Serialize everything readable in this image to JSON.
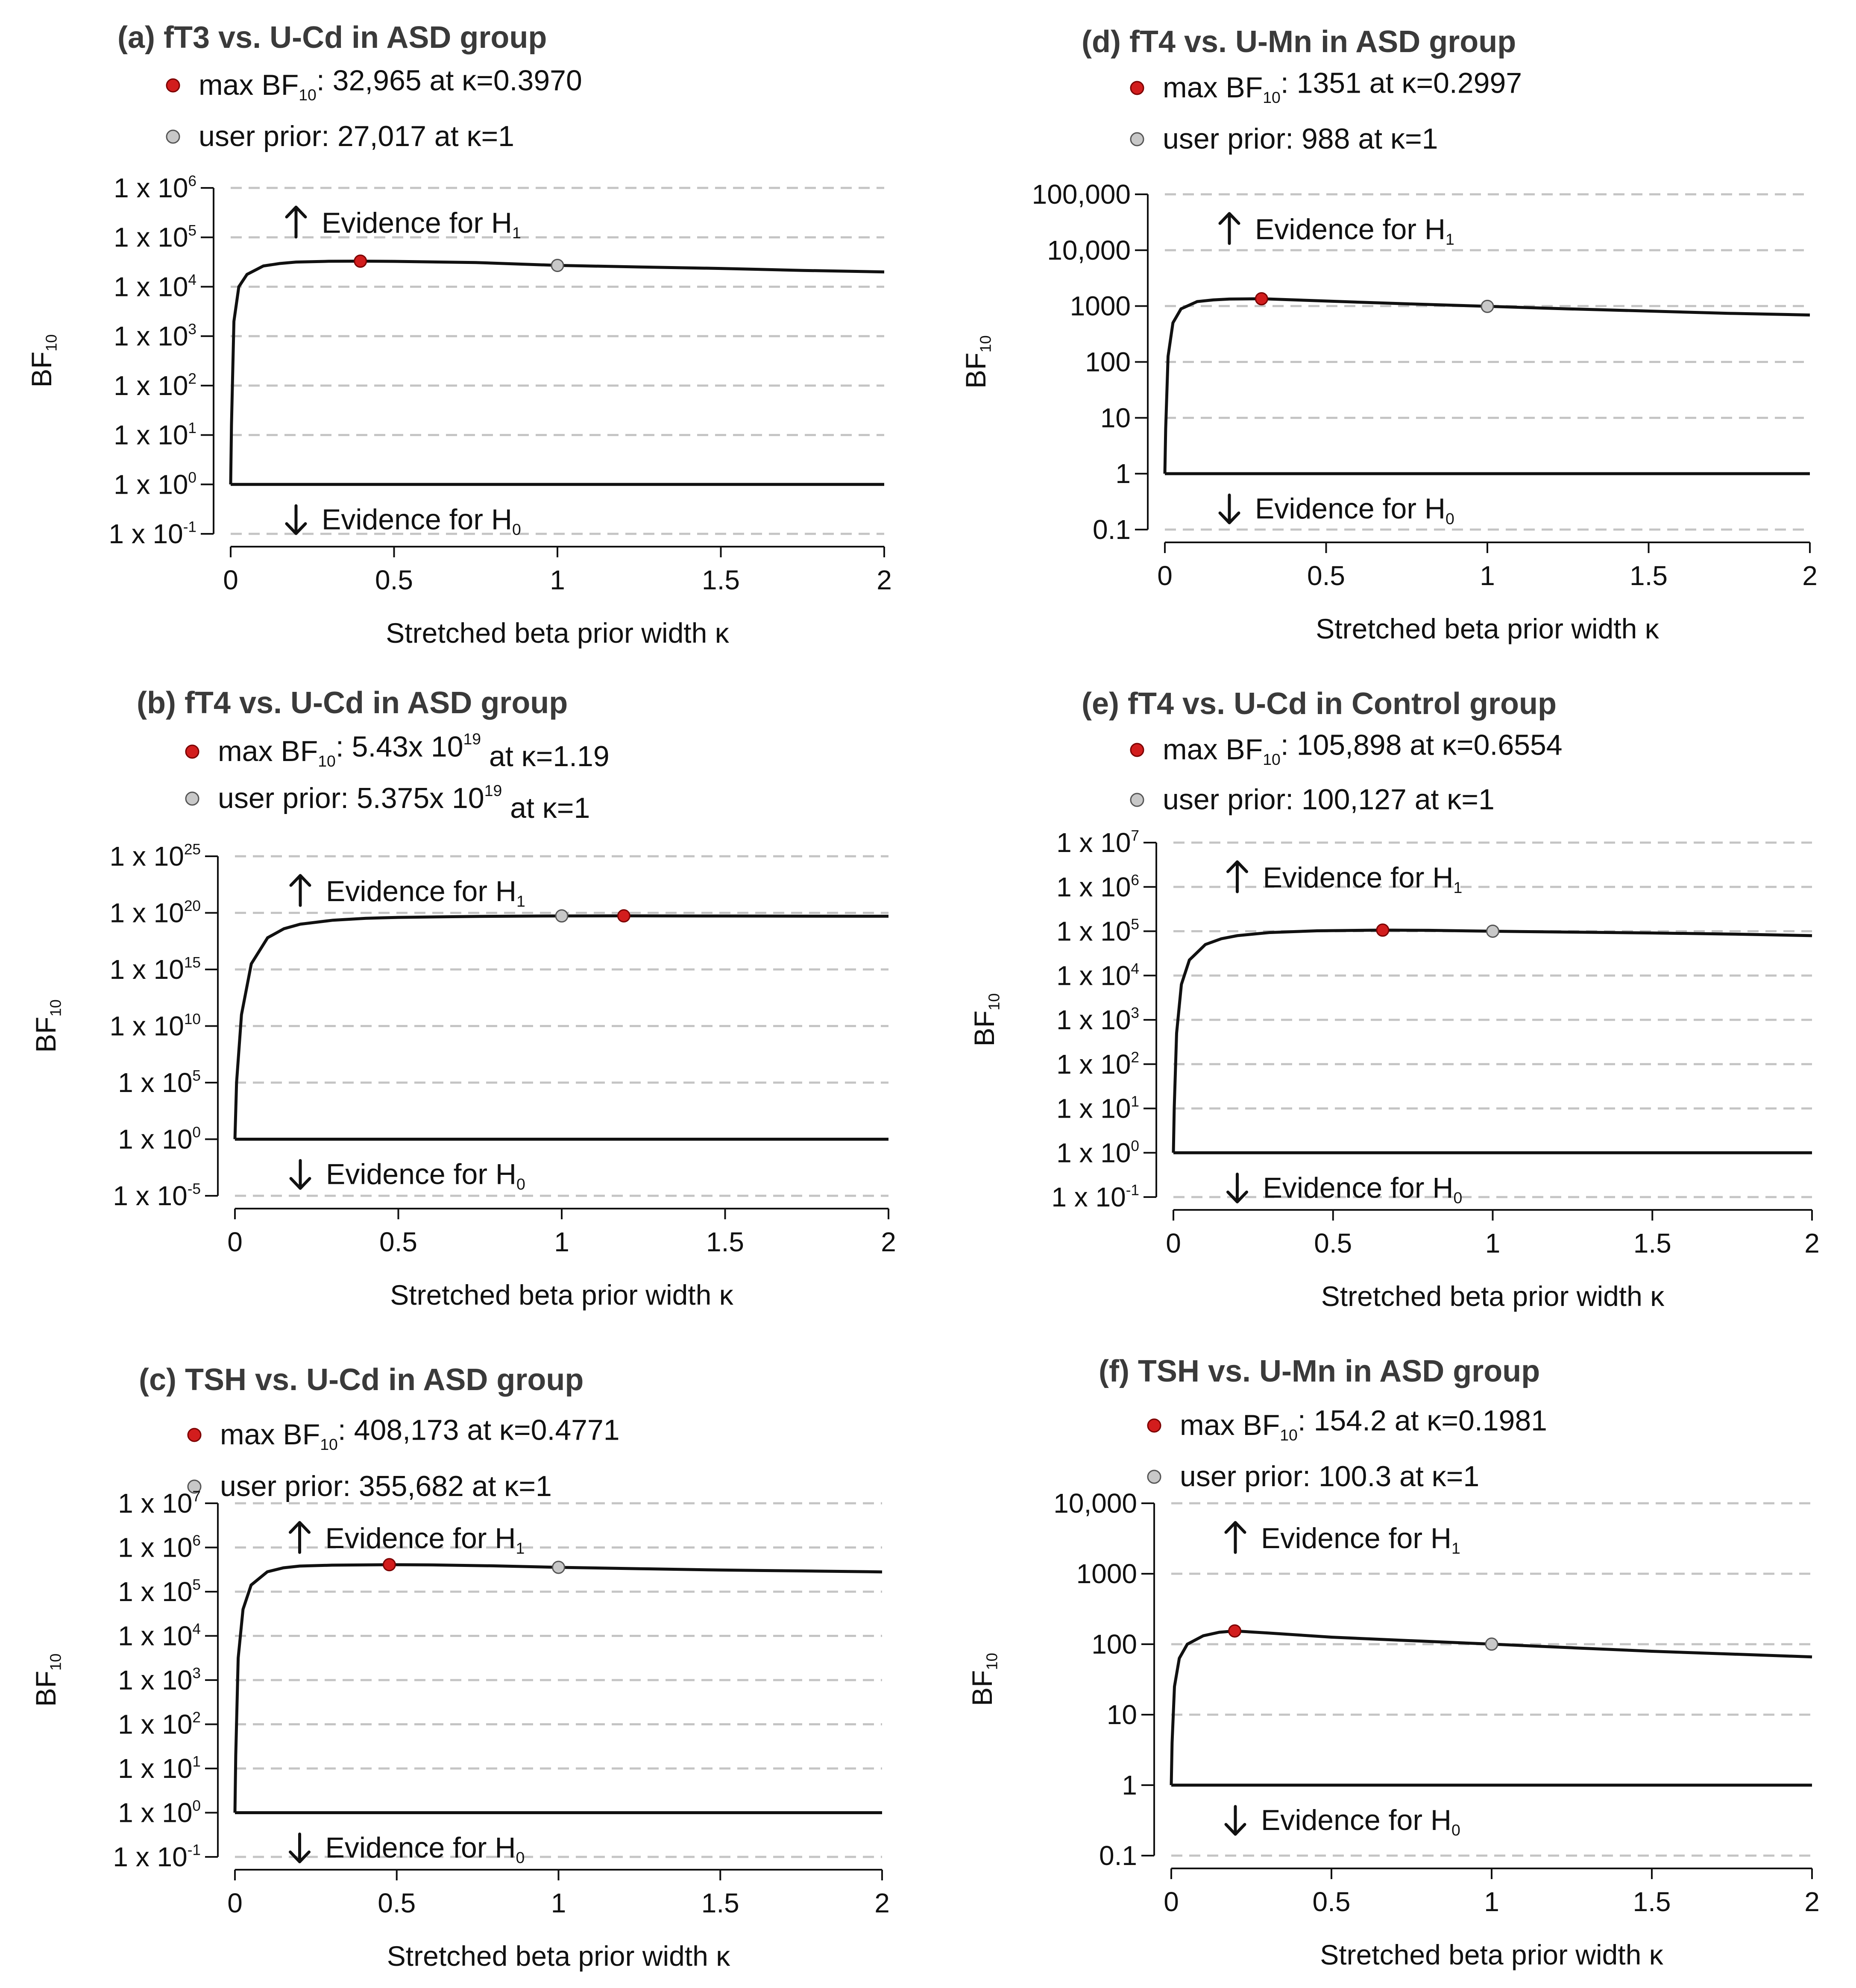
{
  "colors": {
    "max_point": "#d21d1d",
    "user_point": "#c8c8c8",
    "curve": "#111111",
    "grid": "#c4c4c4",
    "title": "#3a3a3a"
  },
  "chart_data": [
    {
      "id": "a",
      "type": "line",
      "title": "(a) fT3 vs. U-Cd in ASD group",
      "legend": {
        "max_label": "max BF",
        "max_sub": "10",
        "max_value": ": 32,965 at κ=0.3970",
        "user_label": "user prior: 27,017 at κ=1"
      },
      "xlabel": "Stretched beta prior width κ",
      "ylabel": "BF",
      "ylabel_sub": "10",
      "xticks": [
        0,
        0.5,
        1,
        1.5,
        2
      ],
      "xtick_labels": [
        "0",
        "0.5",
        "1",
        "1.5",
        "2"
      ],
      "xlim": [
        0,
        2
      ],
      "y_scale": "log10",
      "ylim_log10": [
        -1,
        6
      ],
      "ytick_exponents": [
        6,
        5,
        4,
        3,
        2,
        1,
        0,
        -1
      ],
      "ytick_labels": [
        [
          "1 x 10",
          "6"
        ],
        [
          "1 x 10",
          "5"
        ],
        [
          "1 x 10",
          "4"
        ],
        [
          "1 x 10",
          "3"
        ],
        [
          "1 x 10",
          "2"
        ],
        [
          "1 x 10",
          "1"
        ],
        [
          "1 x 10",
          "0"
        ],
        [
          "1 x 10",
          "-1"
        ]
      ],
      "evidence_h1": "Evidence for H",
      "evidence_h1_sub": "1",
      "evidence_h0": "Evidence for H",
      "evidence_h0_sub": "0",
      "max_point": {
        "kappa": 0.397,
        "bf": 32965
      },
      "user_point": {
        "kappa": 1,
        "bf": 27017
      },
      "bf_at_kappa2": 20000,
      "series": [
        {
          "name": "BF10",
          "kappa": [
            0,
            0.0025,
            0.01,
            0.025,
            0.05,
            0.1,
            0.15,
            0.2,
            0.3,
            0.397,
            0.5,
            0.75,
            1,
            1.25,
            1.5,
            1.75,
            2
          ],
          "log10_bf": [
            0,
            1.2,
            3.3,
            4.0,
            4.25,
            4.42,
            4.47,
            4.5,
            4.515,
            4.518,
            4.514,
            4.49,
            4.432,
            4.4,
            4.37,
            4.33,
            4.3
          ]
        }
      ]
    },
    {
      "id": "d",
      "type": "line",
      "title": "(d) fT4 vs. U-Mn in ASD group",
      "legend": {
        "max_label": "max BF",
        "max_sub": "10",
        "max_value": ": 1351 at κ=0.2997",
        "user_label": "user prior: 988 at κ=1"
      },
      "xlabel": "Stretched beta prior width κ",
      "ylabel": "BF",
      "ylabel_sub": "10",
      "xticks": [
        0,
        0.5,
        1,
        1.5,
        2
      ],
      "xtick_labels": [
        "0",
        "0.5",
        "1",
        "1.5",
        "2"
      ],
      "xlim": [
        0,
        2
      ],
      "y_scale": "log10",
      "ylim_log10": [
        -1,
        5
      ],
      "ytick_exponents": [
        5,
        4,
        3,
        2,
        1,
        0,
        -1
      ],
      "ytick_labels": [
        [
          "100,000",
          ""
        ],
        [
          "10,000",
          ""
        ],
        [
          "1000",
          ""
        ],
        [
          "100",
          ""
        ],
        [
          "10",
          ""
        ],
        [
          "1",
          ""
        ],
        [
          "0.1",
          ""
        ]
      ],
      "evidence_h1": "Evidence for H",
      "evidence_h1_sub": "1",
      "evidence_h0": "Evidence for H",
      "evidence_h0_sub": "0",
      "max_point": {
        "kappa": 0.2997,
        "bf": 1351
      },
      "user_point": {
        "kappa": 1,
        "bf": 988
      },
      "bf_at_kappa2": 690,
      "series": [
        {
          "name": "BF10",
          "kappa": [
            0,
            0.0025,
            0.01,
            0.025,
            0.05,
            0.1,
            0.15,
            0.2,
            0.2997,
            0.5,
            0.75,
            1,
            1.25,
            1.5,
            1.75,
            2
          ],
          "log10_bf": [
            0,
            0.8,
            2.1,
            2.7,
            2.95,
            3.08,
            3.11,
            3.125,
            3.131,
            3.09,
            3.04,
            2.995,
            2.95,
            2.91,
            2.87,
            2.84
          ]
        }
      ]
    },
    {
      "id": "b",
      "type": "line",
      "title": "(b) fT4 vs. U-Cd in ASD group",
      "legend": {
        "max_label": "max BF",
        "max_sub": "10",
        "max_value": ": 5.43x 10",
        "max_sup": "19",
        "max_tail": " at κ=1.19",
        "user_label": "user prior: 5.375x 10",
        "user_sup": "19",
        "user_tail": " at κ=1"
      },
      "xlabel": "Stretched beta prior width κ",
      "ylabel": "BF",
      "ylabel_sub": "10",
      "xticks": [
        0,
        0.5,
        1,
        1.5,
        2
      ],
      "xtick_labels": [
        "0",
        "0.5",
        "1",
        "1.5",
        "2"
      ],
      "xlim": [
        0,
        2
      ],
      "y_scale": "log10",
      "ylim_log10": [
        -5,
        25
      ],
      "ytick_exponents": [
        25,
        20,
        15,
        10,
        5,
        0,
        -5
      ],
      "ytick_labels": [
        [
          "1 x 10",
          "25"
        ],
        [
          "1 x 10",
          "20"
        ],
        [
          "1 x 10",
          "15"
        ],
        [
          "1 x 10",
          "10"
        ],
        [
          "1 x 10",
          "5"
        ],
        [
          "1 x 10",
          "0"
        ],
        [
          "1 x 10",
          "-5"
        ]
      ],
      "evidence_h1": "Evidence for H",
      "evidence_h1_sub": "1",
      "evidence_h0": "Evidence for H",
      "evidence_h0_sub": "0",
      "max_point": {
        "kappa": 1.19,
        "bf": 5.43e+19
      },
      "user_point": {
        "kappa": 1,
        "bf": 5.375e+19
      },
      "bf_at_kappa2": 5e+19,
      "series": [
        {
          "name": "BF10",
          "kappa": [
            0,
            0.005,
            0.02,
            0.05,
            0.1,
            0.15,
            0.2,
            0.3,
            0.4,
            0.5,
            0.75,
            1,
            1.19,
            1.5,
            1.75,
            2
          ],
          "log10_bf": [
            0,
            5,
            11,
            15.5,
            17.8,
            18.6,
            19.0,
            19.35,
            19.52,
            19.6,
            19.69,
            19.73,
            19.735,
            19.72,
            19.71,
            19.7
          ]
        }
      ]
    },
    {
      "id": "e",
      "type": "line",
      "title": "(e) fT4 vs. U-Cd in Control group",
      "legend": {
        "max_label": "max BF",
        "max_sub": "10",
        "max_value": ": 105,898 at κ=0.6554",
        "user_label": "user prior: 100,127 at κ=1"
      },
      "xlabel": "Stretched beta prior width κ",
      "ylabel": "BF",
      "ylabel_sub": "10",
      "xticks": [
        0,
        0.5,
        1,
        1.5,
        2
      ],
      "xtick_labels": [
        "0",
        "0.5",
        "1",
        "1.5",
        "2"
      ],
      "xlim": [
        0,
        2
      ],
      "y_scale": "log10",
      "ylim_log10": [
        -1,
        7
      ],
      "ytick_exponents": [
        7,
        6,
        5,
        4,
        3,
        2,
        1,
        0,
        -1
      ],
      "ytick_labels": [
        [
          "1 x 10",
          "7"
        ],
        [
          "1 x 10",
          "6"
        ],
        [
          "1 x 10",
          "5"
        ],
        [
          "1 x 10",
          "4"
        ],
        [
          "1 x 10",
          "3"
        ],
        [
          "1 x 10",
          "2"
        ],
        [
          "1 x 10",
          "1"
        ],
        [
          "1 x 10",
          "0"
        ],
        [
          "1 x 10",
          "-1"
        ]
      ],
      "evidence_h1": "Evidence for H",
      "evidence_h1_sub": "1",
      "evidence_h0": "Evidence for H",
      "evidence_h0_sub": "0",
      "max_point": {
        "kappa": 0.6554,
        "bf": 105898
      },
      "user_point": {
        "kappa": 1,
        "bf": 100127
      },
      "bf_at_kappa2": 80000,
      "series": [
        {
          "name": "BF10",
          "kappa": [
            0,
            0.0025,
            0.01,
            0.025,
            0.05,
            0.1,
            0.15,
            0.2,
            0.3,
            0.45,
            0.6554,
            0.8,
            1,
            1.25,
            1.5,
            1.75,
            2
          ],
          "log10_bf": [
            0,
            1.0,
            2.7,
            3.8,
            4.35,
            4.7,
            4.83,
            4.9,
            4.97,
            5.01,
            5.025,
            5.02,
            5.0,
            4.98,
            4.96,
            4.935,
            4.9
          ]
        }
      ]
    },
    {
      "id": "c",
      "type": "line",
      "title": "(c) TSH vs. U-Cd in ASD group",
      "legend": {
        "max_label": "max BF",
        "max_sub": "10",
        "max_value": ": 408,173 at κ=0.4771",
        "user_label": "user prior: 355,682 at κ=1"
      },
      "xlabel": "Stretched beta prior width κ",
      "ylabel": "BF",
      "ylabel_sub": "10",
      "xticks": [
        0,
        0.5,
        1,
        1.5,
        2
      ],
      "xtick_labels": [
        "0",
        "0.5",
        "1",
        "1.5",
        "2"
      ],
      "xlim": [
        0,
        2
      ],
      "y_scale": "log10",
      "ylim_log10": [
        -1,
        7
      ],
      "ytick_exponents": [
        7,
        6,
        5,
        4,
        3,
        2,
        1,
        0,
        -1
      ],
      "ytick_labels": [
        [
          "1 x 10",
          "7"
        ],
        [
          "1 x 10",
          "6"
        ],
        [
          "1 x 10",
          "5"
        ],
        [
          "1 x 10",
          "4"
        ],
        [
          "1 x 10",
          "3"
        ],
        [
          "1 x 10",
          "2"
        ],
        [
          "1 x 10",
          "1"
        ],
        [
          "1 x 10",
          "0"
        ],
        [
          "1 x 10",
          "-1"
        ]
      ],
      "evidence_h1": "Evidence for H",
      "evidence_h1_sub": "1",
      "evidence_h0": "Evidence for H",
      "evidence_h0_sub": "0",
      "max_point": {
        "kappa": 0.4771,
        "bf": 408173
      },
      "user_point": {
        "kappa": 1,
        "bf": 355682
      },
      "bf_at_kappa2": 280000,
      "series": [
        {
          "name": "BF10",
          "kappa": [
            0,
            0.0025,
            0.01,
            0.025,
            0.05,
            0.1,
            0.15,
            0.2,
            0.3,
            0.4771,
            0.6,
            0.8,
            1,
            1.25,
            1.5,
            1.75,
            2
          ],
          "log10_bf": [
            0,
            1.3,
            3.5,
            4.6,
            5.15,
            5.45,
            5.54,
            5.58,
            5.6,
            5.611,
            5.607,
            5.585,
            5.551,
            5.52,
            5.49,
            5.47,
            5.447
          ]
        }
      ]
    },
    {
      "id": "f",
      "type": "line",
      "title": "(f) TSH vs. U-Mn in ASD group",
      "legend": {
        "max_label": "max BF",
        "max_sub": "10",
        "max_value": ": 154.2 at κ=0.1981",
        "user_label": "user prior: 100.3 at κ=1"
      },
      "xlabel": "Stretched beta prior width κ",
      "ylabel": "BF",
      "ylabel_sub": "10",
      "xticks": [
        0,
        0.5,
        1,
        1.5,
        2
      ],
      "xtick_labels": [
        "0",
        "0.5",
        "1",
        "1.5",
        "2"
      ],
      "xlim": [
        0,
        2
      ],
      "y_scale": "log10",
      "ylim_log10": [
        -1,
        4
      ],
      "ytick_exponents": [
        4,
        3,
        2,
        1,
        0,
        -1
      ],
      "ytick_labels": [
        [
          "10,000",
          ""
        ],
        [
          "1000",
          ""
        ],
        [
          "100",
          ""
        ],
        [
          "10",
          ""
        ],
        [
          "1",
          ""
        ],
        [
          "0.1",
          ""
        ]
      ],
      "evidence_h1": "Evidence for H",
      "evidence_h1_sub": "1",
      "evidence_h0": "Evidence for H",
      "evidence_h0_sub": "0",
      "max_point": {
        "kappa": 0.1981,
        "bf": 154.2
      },
      "user_point": {
        "kappa": 1,
        "bf": 100.3
      },
      "bf_at_kappa2": 66,
      "series": [
        {
          "name": "BF10",
          "kappa": [
            0,
            0.0025,
            0.01,
            0.025,
            0.05,
            0.1,
            0.15,
            0.1981,
            0.3,
            0.5,
            0.75,
            1,
            1.25,
            1.5,
            1.75,
            2
          ],
          "log10_bf": [
            0,
            0.6,
            1.4,
            1.8,
            2.0,
            2.12,
            2.17,
            2.188,
            2.16,
            2.1,
            2.05,
            2.001,
            1.95,
            1.9,
            1.86,
            1.82
          ]
        }
      ]
    }
  ]
}
